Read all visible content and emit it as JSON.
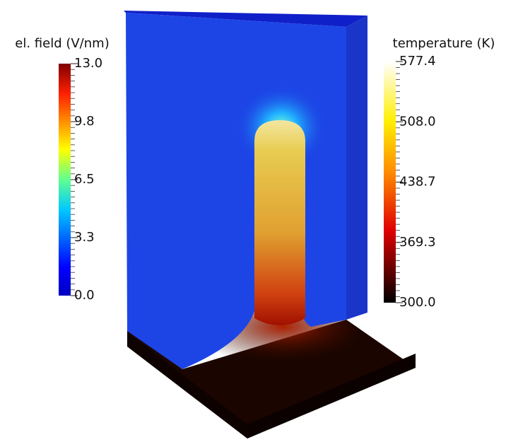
{
  "legends": [
    {
      "title": "el. field (V/nm)",
      "ticks": [
        "13.0",
        "9.8",
        "6.5",
        "3.3",
        "0.0"
      ]
    },
    {
      "title": "temperature (K)",
      "ticks": [
        "577.4",
        "508.0",
        "438.7",
        "369.3",
        "300.0"
      ]
    }
  ]
}
